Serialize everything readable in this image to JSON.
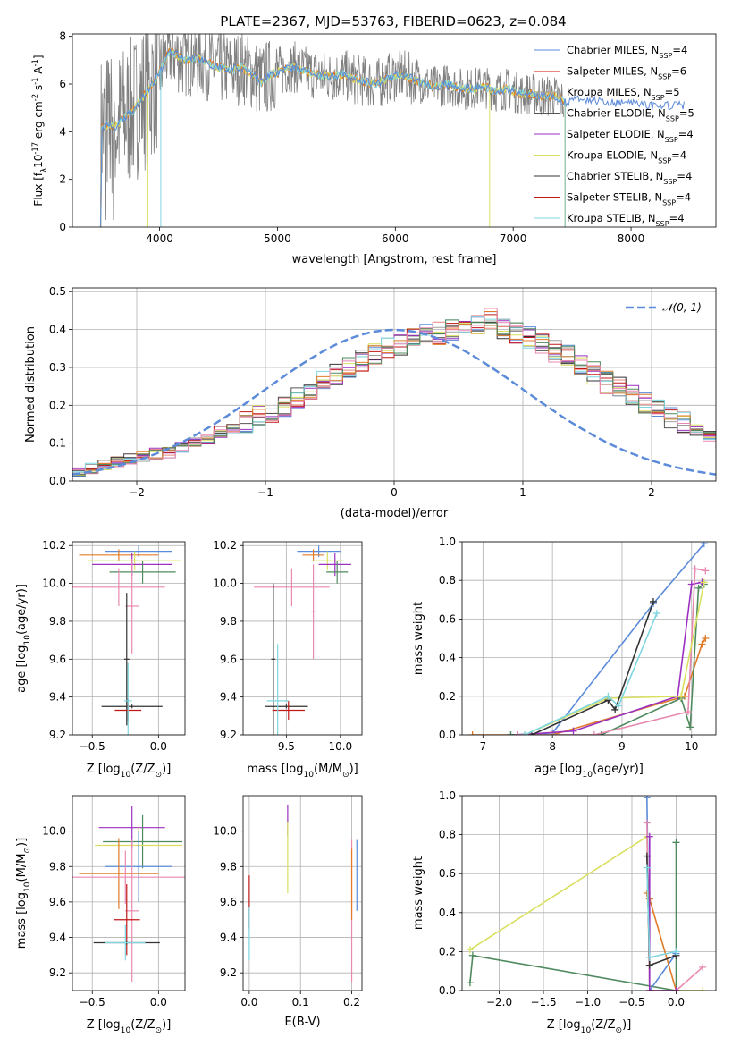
{
  "figure_title": "PLATE=2367, MJD=53763, FIBERID=0623, z=0.084",
  "colors": {
    "c0": "#5b8bd9",
    "c1": "#e8897f",
    "c2": "#a0a0a0",
    "c3": "#555555",
    "c4": "#9b30c0",
    "c5": "#d9e060",
    "c6": "#333333",
    "c7": "#c01818",
    "c8": "#7fd6e0",
    "orange": "#e07b28",
    "green": "#4f8a5f",
    "pink": "#e889b0"
  },
  "legend": [
    {
      "label": "Chabrier MILES, N",
      "sub": "SSP",
      "suffix": "=4",
      "color": "#5b8bd9"
    },
    {
      "label": "Salpeter MILES, N",
      "sub": "SSP",
      "suffix": "=6",
      "color": "#e8897f"
    },
    {
      "label": "Kroupa MILES, N",
      "sub": "SSP",
      "suffix": "=5",
      "color": "#a0a0a0"
    },
    {
      "label": "Chabrier ELODIE, N",
      "sub": "SSP",
      "suffix": "=5",
      "color": "#555555"
    },
    {
      "label": "Salpeter ELODIE, N",
      "sub": "SSP",
      "suffix": "=4",
      "color": "#9b30c0"
    },
    {
      "label": "Kroupa ELODIE, N",
      "sub": "SSP",
      "suffix": "=4",
      "color": "#d9e060"
    },
    {
      "label": "Chabrier STELIB, N",
      "sub": "SSP",
      "suffix": "=4",
      "color": "#333333"
    },
    {
      "label": "Salpeter STELIB, N",
      "sub": "SSP",
      "suffix": "=4",
      "color": "#c01818"
    },
    {
      "label": "Kroupa STELIB, N",
      "sub": "SSP",
      "suffix": "=4",
      "color": "#7fd6e0"
    }
  ],
  "chart_data": [
    {
      "id": "spectrum",
      "type": "line",
      "title": "PLATE=2367, MJD=53763, FIBERID=0623, z=0.084",
      "xlabel": "wavelength [Angstrom, rest frame]",
      "ylabel": "Flux [f",
      "ylabel_sub": "λ",
      "ylabel_rest": "10",
      "ylabel_sup": "-17",
      "ylabel_tail": " erg cm",
      "ylabel_sup2": "-2",
      "ylabel_tail2": " s",
      "ylabel_sup3": "-1",
      "ylabel_tail3": " A",
      "ylabel_sup4": "-1",
      "ylabel_end": "]",
      "xlim": [
        3260,
        8720
      ],
      "ylim": [
        0,
        8.1
      ],
      "xticks": [
        4000,
        5000,
        6000,
        7000,
        8000
      ],
      "yticks": [
        0,
        2,
        4,
        6,
        8
      ],
      "model_envelope": {
        "x": [
          3500,
          3560,
          3620,
          3700,
          3780,
          3850,
          3930,
          4000,
          4060,
          4100,
          4200,
          4300,
          4400,
          4500,
          4600,
          4700,
          4800,
          4860,
          4950,
          5050,
          5150,
          5250,
          5350,
          5450,
          5550,
          5650,
          5750,
          5850,
          5950,
          6050,
          6150,
          6250,
          6350,
          6450,
          6550,
          6650,
          6750,
          6850,
          6950,
          7050,
          7150,
          7250,
          7350,
          7450,
          7550,
          7650,
          7750,
          7850,
          7950,
          8050,
          8150,
          8250,
          8350,
          8450
        ],
        "y": [
          4.1,
          4.3,
          4.2,
          4.6,
          4.9,
          5.4,
          5.9,
          6.5,
          7.2,
          7.4,
          7.0,
          7.1,
          6.9,
          6.7,
          6.6,
          6.7,
          6.4,
          6.1,
          6.4,
          6.6,
          6.7,
          6.5,
          6.4,
          6.3,
          6.4,
          6.2,
          6.1,
          6.0,
          6.3,
          6.4,
          6.2,
          6.0,
          5.9,
          6.0,
          5.8,
          5.8,
          5.9,
          5.7,
          5.8,
          5.6,
          5.6,
          5.5,
          5.5,
          5.2,
          5.4,
          5.3,
          5.3,
          5.2,
          5.2,
          5.2,
          5.1,
          5.1,
          5.1,
          5.1
        ]
      }
    },
    {
      "id": "residuals",
      "type": "histogram",
      "xlabel": "(data-model)/error",
      "ylabel": "Normed distribution",
      "xlim": [
        -2.5,
        2.5
      ],
      "ylim": [
        0,
        0.51
      ],
      "xticks": [
        -2,
        -1,
        0,
        1,
        2
      ],
      "yticks": [
        0.0,
        0.1,
        0.2,
        0.3,
        0.4,
        0.5
      ],
      "legend": "𝒩(0, 1)",
      "bin_width": 0.1,
      "bin_start": -2.5,
      "base_heights": [
        0.028,
        0.034,
        0.045,
        0.05,
        0.058,
        0.063,
        0.072,
        0.075,
        0.09,
        0.1,
        0.113,
        0.13,
        0.14,
        0.155,
        0.17,
        0.185,
        0.2,
        0.222,
        0.238,
        0.262,
        0.28,
        0.3,
        0.318,
        0.335,
        0.35,
        0.362,
        0.376,
        0.386,
        0.39,
        0.396,
        0.4,
        0.412,
        0.43,
        0.405,
        0.39,
        0.378,
        0.362,
        0.344,
        0.33,
        0.31,
        0.285,
        0.26,
        0.245,
        0.225,
        0.205,
        0.188,
        0.17,
        0.152,
        0.134,
        0.118,
        0.102,
        0.09,
        0.078,
        0.068,
        0.06,
        0.052,
        0.045,
        0.04,
        0.034,
        0.03
      ]
    },
    {
      "id": "age_vs_Z",
      "type": "errorbar",
      "xlabel": "Z [log",
      "xlabel_sub": "10",
      "xlabel_tail": "(Z/Z",
      "xlabel_sub2": "⊙",
      "xlabel_end": ")]",
      "ylabel": "age  [log",
      "ylabel_sub": "10",
      "ylabel_tail": "(age/yr)]",
      "xlim": [
        -0.65,
        0.2
      ],
      "ylim": [
        9.2,
        10.22
      ],
      "xticks": [
        -0.5,
        0.0
      ],
      "yticks": [
        9.2,
        9.4,
        9.6,
        9.8,
        10.0,
        10.2
      ],
      "points": [
        {
          "x": -0.15,
          "y": 10.17,
          "xerr": 0.25,
          "yerr": 0.03,
          "color": "#5b8bd9"
        },
        {
          "x": -0.3,
          "y": 10.15,
          "xerr": 0.3,
          "yerr": 0.03,
          "color": "#e07b28"
        },
        {
          "x": -0.18,
          "y": 10.12,
          "xerr": 0.35,
          "yerr": 0.05,
          "color": "#d9e060"
        },
        {
          "x": -0.2,
          "y": 10.1,
          "xerr": 0.3,
          "yerr": 0.06,
          "color": "#9b30c0"
        },
        {
          "x": -0.12,
          "y": 10.06,
          "xerr": 0.25,
          "yerr": 0.06,
          "color": "#4f8a5f"
        },
        {
          "x": -0.3,
          "y": 9.98,
          "xerr": 0.35,
          "yerr": 0.1,
          "color": "#e889b0"
        },
        {
          "x": -0.2,
          "y": 9.88,
          "xerr": 0.05,
          "yerr": 0.25,
          "color": "#e889b0"
        },
        {
          "x": -0.24,
          "y": 9.6,
          "xerr": 0.02,
          "yerr": 0.35,
          "color": "#333333"
        },
        {
          "x": -0.2,
          "y": 9.35,
          "xerr": 0.23,
          "yerr": 0.01,
          "color": "#333333"
        },
        {
          "x": -0.23,
          "y": 9.33,
          "xerr": 0.1,
          "yerr": 0.06,
          "color": "#c01818"
        },
        {
          "x": -0.23,
          "y": 9.38,
          "xerr": 0.03,
          "yerr": 0.2,
          "color": "#7fd6e0"
        }
      ]
    },
    {
      "id": "age_vs_mass",
      "type": "errorbar",
      "xlabel": "mass [log",
      "xlabel_sub": "10",
      "xlabel_tail": "(M/M",
      "xlabel_sub2": "⊙",
      "xlabel_end": ")]",
      "xlim": [
        9.1,
        10.2
      ],
      "ylim": [
        9.2,
        10.22
      ],
      "xticks": [
        9.5,
        10.0
      ],
      "yticks": [
        9.2,
        9.4,
        9.6,
        9.8,
        10.0,
        10.2
      ],
      "points": [
        {
          "x": 9.8,
          "y": 10.17,
          "xerr": 0.2,
          "yerr": 0.03,
          "color": "#5b8bd9"
        },
        {
          "x": 9.75,
          "y": 10.15,
          "xerr": 0.1,
          "yerr": 0.03,
          "color": "#e07b28"
        },
        {
          "x": 9.88,
          "y": 10.12,
          "xerr": 0.15,
          "yerr": 0.05,
          "color": "#d9e060"
        },
        {
          "x": 9.95,
          "y": 10.1,
          "xerr": 0.15,
          "yerr": 0.06,
          "color": "#9b30c0"
        },
        {
          "x": 9.97,
          "y": 10.06,
          "xerr": 0.1,
          "yerr": 0.06,
          "color": "#4f8a5f"
        },
        {
          "x": 9.55,
          "y": 9.98,
          "xerr": 0.35,
          "yerr": 0.1,
          "color": "#e889b0"
        },
        {
          "x": 9.75,
          "y": 9.85,
          "xerr": 0.02,
          "yerr": 0.25,
          "color": "#e889b0"
        },
        {
          "x": 9.38,
          "y": 9.6,
          "xerr": 0.02,
          "yerr": 0.4,
          "color": "#333333"
        },
        {
          "x": 9.5,
          "y": 9.35,
          "xerr": 0.2,
          "yerr": 0.01,
          "color": "#333333"
        },
        {
          "x": 9.52,
          "y": 9.33,
          "xerr": 0.15,
          "yerr": 0.05,
          "color": "#c01818"
        },
        {
          "x": 9.42,
          "y": 9.38,
          "xerr": 0.1,
          "yerr": 0.3,
          "color": "#7fd6e0"
        }
      ]
    },
    {
      "id": "weight_vs_age",
      "type": "line",
      "xlabel": "age  [log",
      "xlabel_sub": "10",
      "xlabel_tail": "(age/yr)]",
      "ylabel": "mass weight",
      "xlim": [
        6.7,
        10.35
      ],
      "ylim": [
        0,
        1.0
      ],
      "xticks": [
        7,
        8,
        9,
        10
      ],
      "yticks": [
        0.0,
        0.2,
        0.4,
        0.6,
        0.8,
        1.0
      ],
      "series": [
        {
          "color": "#5b8bd9",
          "x": [
            7.4,
            8.0,
            9.45,
            10.18
          ],
          "y": [
            0.0,
            0.01,
            0.68,
            0.99
          ]
        },
        {
          "color": "#e07b28",
          "x": [
            6.85,
            8.0,
            9.9,
            10.15,
            10.2
          ],
          "y": [
            0.0,
            0.0,
            0.2,
            0.47,
            0.5
          ]
        },
        {
          "color": "#4f8a5f",
          "x": [
            7.4,
            8.7,
            9.85,
            9.98,
            10.1,
            10.18
          ],
          "y": [
            0.0,
            0.0,
            0.19,
            0.04,
            0.76,
            0.78
          ]
        },
        {
          "color": "#9b30c0",
          "x": [
            7.5,
            8.3,
            9.8,
            10.0,
            10.15
          ],
          "y": [
            0.0,
            0.02,
            0.2,
            0.78,
            0.79
          ]
        },
        {
          "color": "#e889b0",
          "x": [
            7.5,
            8.6,
            9.95,
            10.05,
            10.2
          ],
          "y": [
            0.0,
            0.0,
            0.12,
            0.86,
            0.85
          ]
        },
        {
          "color": "#d9e060",
          "x": [
            7.6,
            8.8,
            9.85,
            10.18
          ],
          "y": [
            0.0,
            0.19,
            0.2,
            0.79
          ]
        },
        {
          "color": "#333333",
          "x": [
            7.7,
            8.8,
            8.9,
            9.45
          ],
          "y": [
            0.0,
            0.18,
            0.13,
            0.69
          ]
        },
        {
          "color": "#7fd6e0",
          "x": [
            7.6,
            8.8,
            8.95,
            9.5
          ],
          "y": [
            0.0,
            0.2,
            0.15,
            0.63
          ]
        }
      ]
    },
    {
      "id": "mass_vs_Z",
      "type": "errorbar",
      "xlabel": "Z [log",
      "xlabel_sub": "10",
      "xlabel_tail": "(Z/Z",
      "xlabel_sub2": "⊙",
      "xlabel_end": ")]",
      "ylabel": "mass [log",
      "ylabel_sub": "10",
      "ylabel_tail": "(M/M",
      "ylabel_sub2": "⊙",
      "ylabel_end": ")]",
      "xlim": [
        -0.65,
        0.2
      ],
      "ylim": [
        9.1,
        10.2
      ],
      "xticks": [
        -0.5,
        0.0
      ],
      "yticks": [
        9.2,
        9.4,
        9.6,
        9.8,
        10.0
      ],
      "points": [
        {
          "x": -0.2,
          "y": 10.02,
          "xerr": 0.25,
          "yerr": 0.12,
          "color": "#9b30c0"
        },
        {
          "x": -0.12,
          "y": 9.94,
          "xerr": 0.3,
          "yerr": 0.15,
          "color": "#4f8a5f"
        },
        {
          "x": -0.15,
          "y": 9.92,
          "xerr": 0.33,
          "yerr": 0.1,
          "color": "#d9e060"
        },
        {
          "x": -0.15,
          "y": 9.8,
          "xerr": 0.25,
          "yerr": 0.2,
          "color": "#5b8bd9"
        },
        {
          "x": -0.3,
          "y": 9.76,
          "xerr": 0.3,
          "yerr": 0.2,
          "color": "#e07b28"
        },
        {
          "x": -0.25,
          "y": 9.74,
          "xerr": 0.45,
          "yerr": 0.15,
          "color": "#e889b0"
        },
        {
          "x": -0.2,
          "y": 9.55,
          "xerr": 0.05,
          "yerr": 0.4,
          "color": "#e889b0"
        },
        {
          "x": -0.24,
          "y": 9.5,
          "xerr": 0.1,
          "yerr": 0.2,
          "color": "#c01818"
        },
        {
          "x": -0.24,
          "y": 9.37,
          "xerr": 0.25,
          "yerr": 0.01,
          "color": "#333333"
        },
        {
          "x": -0.25,
          "y": 9.37,
          "xerr": 0.15,
          "yerr": 0.1,
          "color": "#7fd6e0"
        }
      ]
    },
    {
      "id": "mass_vs_ebv",
      "type": "errorbar",
      "xlabel": "E(B-V)",
      "xlim": [
        -0.012,
        0.22
      ],
      "ylim": [
        9.1,
        10.2
      ],
      "xticks": [
        0.0,
        0.1,
        0.2
      ],
      "yticks": [
        9.2,
        9.4,
        9.6,
        9.8,
        10.0
      ],
      "points": [
        {
          "x": 0.075,
          "y": 10.06,
          "xerr": 0,
          "yerr": 0.09,
          "color": "#9b30c0"
        },
        {
          "x": 0.075,
          "y": 9.85,
          "xerr": 0,
          "yerr": 0.2,
          "color": "#d9e060"
        },
        {
          "x": 0.21,
          "y": 9.75,
          "xerr": 0,
          "yerr": 0.2,
          "color": "#5b8bd9"
        },
        {
          "x": 0.2,
          "y": 9.55,
          "xerr": 0,
          "yerr": 0.4,
          "color": "#e889b0"
        },
        {
          "x": 0.2,
          "y": 9.7,
          "xerr": 0,
          "yerr": 0.2,
          "color": "#e07b28"
        },
        {
          "x": 0.0,
          "y": 9.6,
          "xerr": 0,
          "yerr": 0.15,
          "color": "#c01818"
        },
        {
          "x": 0.0,
          "y": 9.42,
          "xerr": 0,
          "yerr": 0.15,
          "color": "#7fd6e0"
        }
      ]
    },
    {
      "id": "weight_vs_Z",
      "type": "line",
      "xlabel": "Z [log",
      "xlabel_sub": "10",
      "xlabel_tail": "(Z/Z",
      "xlabel_sub2": "⊙",
      "xlabel_end": ")]",
      "ylabel": "mass weight",
      "xlim": [
        -2.42,
        0.45
      ],
      "ylim": [
        0,
        1.0
      ],
      "xticks": [
        -2.0,
        -1.5,
        -1.0,
        -0.5,
        0.0
      ],
      "yticks": [
        0.0,
        0.2,
        0.4,
        0.6,
        0.8,
        1.0
      ],
      "series": [
        {
          "color": "#d9e060",
          "x": [
            -2.33,
            -0.33,
            -0.3,
            0.0,
            0.3
          ],
          "y": [
            0.21,
            0.79,
            0.0,
            0.0,
            0.0
          ]
        },
        {
          "color": "#4f8a5f",
          "x": [
            -2.33,
            -2.3,
            0.0,
            0.0
          ],
          "y": [
            0.04,
            0.18,
            0.0,
            0.76
          ]
        },
        {
          "color": "#5b8bd9",
          "x": [
            -0.33,
            -0.3,
            0.0
          ],
          "y": [
            0.99,
            0.0,
            0.19
          ]
        },
        {
          "color": "#e889b0",
          "x": [
            -0.33,
            -0.3,
            0.0,
            0.3
          ],
          "y": [
            0.86,
            0.0,
            0.0,
            0.12
          ]
        },
        {
          "color": "#e07b28",
          "x": [
            -0.33,
            -0.3,
            0.0
          ],
          "y": [
            0.5,
            0.47,
            0.0
          ]
        },
        {
          "color": "#9b30c0",
          "x": [
            -0.3,
            -0.3,
            0.0
          ],
          "y": [
            0.79,
            0.0,
            0.0
          ]
        },
        {
          "color": "#333333",
          "x": [
            -0.33,
            -0.3,
            0.0
          ],
          "y": [
            0.69,
            0.13,
            0.18
          ]
        },
        {
          "color": "#7fd6e0",
          "x": [
            -0.33,
            -0.3,
            0.0
          ],
          "y": [
            0.63,
            0.17,
            0.2
          ]
        }
      ]
    }
  ]
}
